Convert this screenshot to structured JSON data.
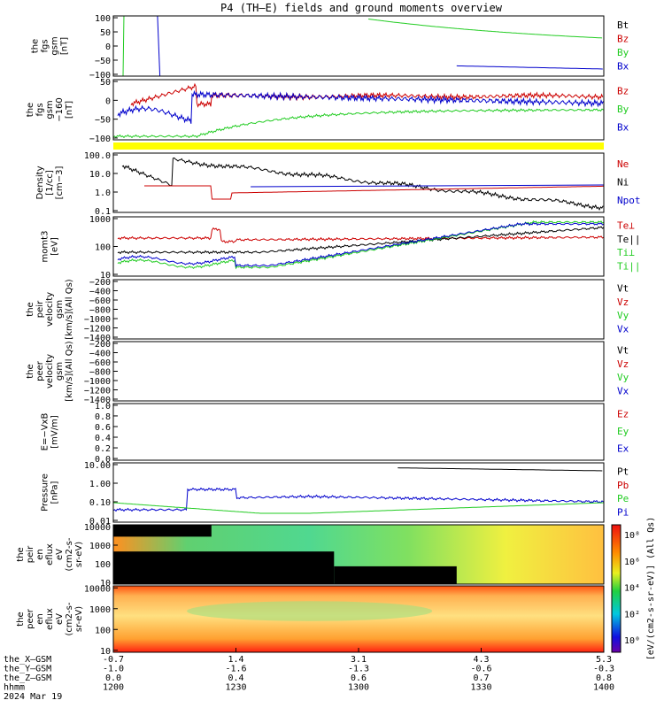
{
  "title": "P4 (TH–E) fields and ground moments overview",
  "colors": {
    "black": "#000000",
    "red": "#cc0000",
    "green": "#22cc22",
    "blue": "#0000cc",
    "yellow": "#ffff00"
  },
  "footer": {
    "rows": [
      {
        "label": "the_X–GSM",
        "values": [
          "-0.7",
          "1.4",
          "3.1",
          "4.3",
          "5.3"
        ]
      },
      {
        "label": "the_Y–GSM",
        "values": [
          "-1.0",
          "-1.6",
          "-1.3",
          "-0.6",
          "-0.3"
        ]
      },
      {
        "label": "the_Z–GSM",
        "values": [
          "0.0",
          "0.4",
          "0.6",
          "0.7",
          "0.8"
        ]
      },
      {
        "label": "hhmm",
        "values": [
          "1200",
          "1230",
          "1300",
          "1330",
          "1400"
        ]
      }
    ],
    "date": "2024 Mar 19"
  },
  "colorbar_label": "[eV/(cm2-s-sr-eV)] (All Qs)",
  "colorbar_ticks": [
    "10⁸",
    "10⁶",
    "10⁴",
    "10²",
    "10⁰"
  ],
  "chart_data": [
    {
      "type": "line",
      "ylabel": [
        "the",
        "fgs",
        "gsm",
        "[nT]"
      ],
      "ylim": [
        -100,
        100
      ],
      "yticks": [
        "100",
        "50",
        "0",
        "−50",
        "−100"
      ],
      "legend": [
        {
          "name": "Bt",
          "color": "#000000"
        },
        {
          "name": "Bz",
          "color": "#cc0000"
        },
        {
          "name": "By",
          "color": "#22cc22"
        },
        {
          "name": "Bx",
          "color": "#0000cc"
        }
      ]
    },
    {
      "type": "line",
      "ylabel": [
        "the",
        "fgs",
        "gsm",
        "−160",
        "[nT]"
      ],
      "ylim": [
        -120,
        60
      ],
      "yticks": [
        "50",
        "0",
        "−50",
        "−100"
      ],
      "legend": [
        {
          "name": "Bz",
          "color": "#cc0000"
        },
        {
          "name": "By",
          "color": "#22cc22"
        },
        {
          "name": "Bx",
          "color": "#0000cc"
        }
      ]
    },
    {
      "type": "line",
      "ylabel": [
        "Density",
        "[1/cc]",
        "[cm−3]"
      ],
      "yscale": "log",
      "yticks": [
        "100.0",
        "10.0",
        "1.0",
        "0.1"
      ],
      "legend": [
        {
          "name": "Ne",
          "color": "#cc0000"
        },
        {
          "name": "Ni",
          "color": "#000000"
        },
        {
          "name": "Npot",
          "color": "#0000cc"
        }
      ]
    },
    {
      "type": "line",
      "ylabel": [
        "momt3",
        "[eV]"
      ],
      "yscale": "log",
      "yticks": [
        "1000",
        "100",
        "10"
      ],
      "legend": [
        {
          "name": "Te⊥",
          "color": "#cc0000"
        },
        {
          "name": "Te||",
          "color": "#000000"
        },
        {
          "name": "Ti⊥",
          "color": "#22cc22"
        },
        {
          "name": "Ti||",
          "color": "#22cc22"
        }
      ]
    },
    {
      "type": "line",
      "ylabel": [
        "the",
        "peir",
        "velocity",
        "gsm",
        "[km/s](All Qs)"
      ],
      "ylim": [
        -1400,
        -200
      ],
      "yticks": [
        "−200",
        "−400",
        "−600",
        "−800",
        "−1000",
        "−1200",
        "−1400"
      ],
      "legend": [
        {
          "name": "Vt",
          "color": "#000000"
        },
        {
          "name": "Vz",
          "color": "#cc0000"
        },
        {
          "name": "Vy",
          "color": "#22cc22"
        },
        {
          "name": "Vx",
          "color": "#0000cc"
        }
      ]
    },
    {
      "type": "line",
      "ylabel": [
        "the",
        "peer",
        "velocity",
        "gsm",
        "[km/s](All Qs)"
      ],
      "ylim": [
        -1400,
        -200
      ],
      "yticks": [
        "−200",
        "−400",
        "−600",
        "−800",
        "−1000",
        "−1200",
        "−1400"
      ],
      "legend": [
        {
          "name": "Vt",
          "color": "#000000"
        },
        {
          "name": "Vz",
          "color": "#cc0000"
        },
        {
          "name": "Vy",
          "color": "#22cc22"
        },
        {
          "name": "Vx",
          "color": "#0000cc"
        }
      ]
    },
    {
      "type": "line",
      "ylabel": [
        "E=−VxB",
        "[mV/m]"
      ],
      "ylim": [
        0,
        1
      ],
      "yticks": [
        "1.0",
        "0.8",
        "0.6",
        "0.4",
        "0.2",
        "0.0"
      ],
      "legend": [
        {
          "name": "Ez",
          "color": "#cc0000"
        },
        {
          "name": "Ey",
          "color": "#22cc22"
        },
        {
          "name": "Ex",
          "color": "#0000cc"
        }
      ]
    },
    {
      "type": "line",
      "ylabel": [
        "Pressure",
        "[nPa]"
      ],
      "yscale": "log",
      "yticks": [
        "10.00",
        "1.00",
        "0.10",
        "0.01"
      ],
      "legend": [
        {
          "name": "Pt",
          "color": "#000000"
        },
        {
          "name": "Pb",
          "color": "#cc0000"
        },
        {
          "name": "Pe",
          "color": "#22cc22"
        },
        {
          "name": "Pi",
          "color": "#0000cc"
        }
      ]
    },
    {
      "type": "heatmap",
      "ylabel": [
        "the",
        "peir",
        "en",
        "eflux",
        "eV",
        "(cm2-s-",
        "sr-eV)"
      ],
      "yscale": "log",
      "yticks": [
        "10000",
        "1000",
        "100",
        "10"
      ]
    },
    {
      "type": "heatmap",
      "ylabel": [
        "the",
        "peer",
        "en",
        "eflux",
        "eV",
        "(cm2-s-",
        "sr-eV)"
      ],
      "yscale": "log",
      "yticks": [
        "10000",
        "1000",
        "100",
        "10"
      ]
    }
  ]
}
